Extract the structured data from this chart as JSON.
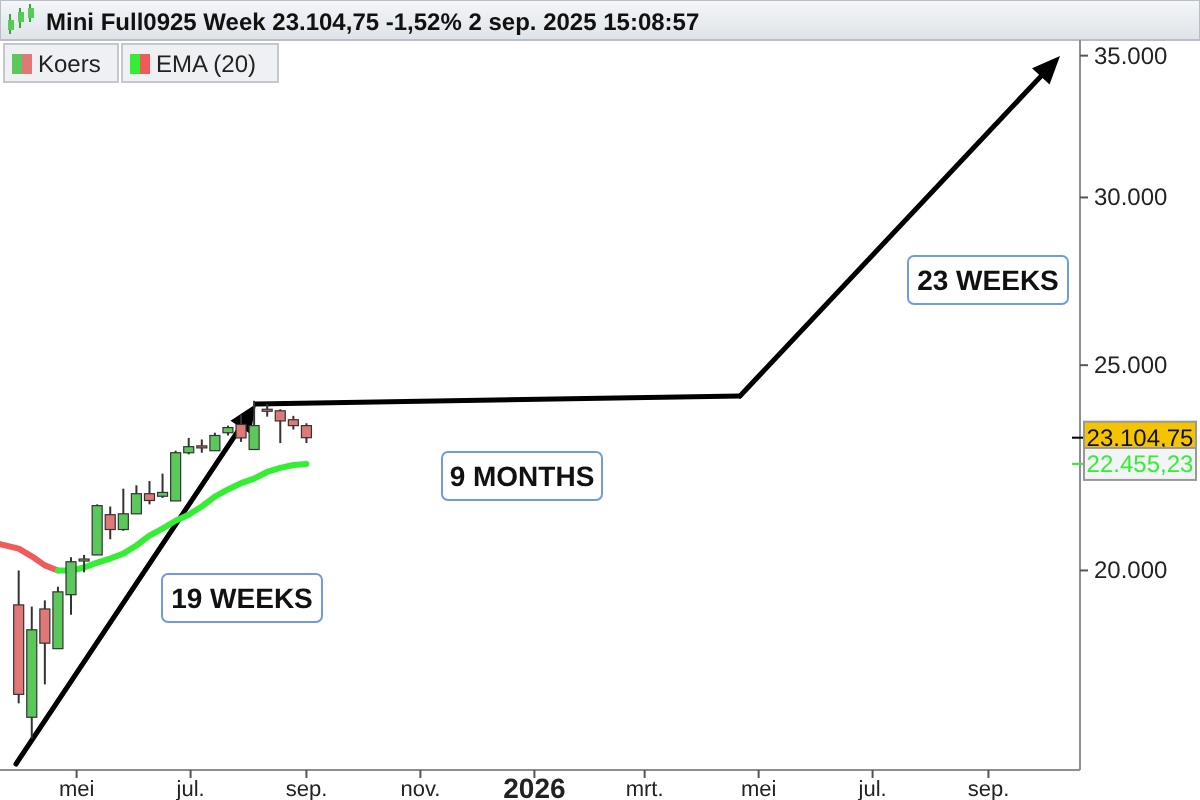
{
  "chart_data": {
    "type": "candlestick",
    "title": "Mini Full0925 Week 23.104,75 -1,52% 2 sep. 2025 15:08:57",
    "log": "y",
    "legend": "top left",
    "xlim": [
      "2025-03-21",
      "2026-10-20"
    ],
    "xticks": [
      {
        "value": "2025-05-01",
        "label": "mei"
      },
      {
        "value": "2025-07-01",
        "label": "jul."
      },
      {
        "value": "2025-09-01",
        "label": "sep."
      },
      {
        "value": "2025-11-01",
        "label": "nov."
      },
      {
        "value": "2026-01-01",
        "label": "2026"
      },
      {
        "value": "2026-03-01",
        "label": "mrt."
      },
      {
        "value": "2026-05-01",
        "label": "mei"
      },
      {
        "value": "2026-07-01",
        "label": "jul."
      },
      {
        "value": "2026-09-01",
        "label": "sep."
      }
    ],
    "ylim": [
      16100,
      35600
    ],
    "yticks": [
      {
        "value": 20000,
        "label": "20.000"
      },
      {
        "value": 25000,
        "label": "25.000"
      },
      {
        "value": 30000,
        "label": "30.000"
      },
      {
        "value": 35000,
        "label": "35.000"
      }
    ],
    "series": [
      {
        "name": "Koers",
        "value_labels": [
          null,
          null,
          null,
          null,
          null,
          null,
          null,
          null,
          null,
          null,
          null,
          null,
          null,
          null,
          null,
          null,
          null,
          null,
          null,
          null,
          null,
          null,
          "23.104,75"
        ],
        "x": [
          "2025-03-31",
          "2025-04-07",
          "2025-04-14",
          "2025-04-21",
          "2025-04-28",
          "2025-05-05",
          "2025-05-12",
          "2025-05-19",
          "2025-05-26",
          "2025-06-02",
          "2025-06-09",
          "2025-06-16",
          "2025-06-23",
          "2025-06-30",
          "2025-07-07",
          "2025-07-14",
          "2025-07-21",
          "2025-07-28",
          "2025-08-04",
          "2025-08-11",
          "2025-08-18",
          "2025-08-25",
          "2025-09-01"
        ],
        "ohlc": [
          [
            19265,
            20000,
            17310,
            17480
          ],
          [
            17050,
            19230,
            16660,
            18750
          ],
          [
            19180,
            19360,
            17670,
            18480
          ],
          [
            18370,
            19650,
            18370,
            19540
          ],
          [
            19480,
            20290,
            19060,
            20190
          ],
          [
            20250,
            20340,
            19960,
            20220
          ],
          [
            20340,
            21490,
            20340,
            21460
          ],
          [
            21250,
            21440,
            20690,
            20910
          ],
          [
            20910,
            21860,
            20880,
            21270
          ],
          [
            21270,
            21940,
            21270,
            21740
          ],
          [
            21740,
            22040,
            21490,
            21580
          ],
          [
            21680,
            22220,
            21640,
            21770
          ],
          [
            21570,
            22780,
            21570,
            22730
          ],
          [
            22730,
            23100,
            22690,
            22880
          ],
          [
            22900,
            23060,
            22730,
            22880
          ],
          [
            22780,
            23230,
            22780,
            23160
          ],
          [
            23230,
            23410,
            23160,
            23360
          ],
          [
            23440,
            23690,
            23000,
            23100
          ],
          [
            22810,
            24050,
            22810,
            23410
          ],
          [
            23830,
            23970,
            23640,
            23790
          ],
          [
            23790,
            23830,
            22970,
            23530
          ],
          [
            23560,
            23660,
            23310,
            23410
          ],
          [
            23410,
            23470,
            22970,
            23105
          ]
        ],
        "colors": [
          "#e07878",
          "#5cc85c",
          "#e07878",
          "#5cc85c",
          "#5cc85c",
          "#5cc85c",
          "#5cc85c",
          "#e07878",
          "#5cc85c",
          "#5cc85c",
          "#e07878",
          "#5cc85c",
          "#5cc85c",
          "#5cc85c",
          "#e07878",
          "#5cc85c",
          "#5cc85c",
          "#e07878",
          "#5cc85c",
          "#e07878",
          "#e07878",
          "#e07878",
          "#e07878"
        ]
      },
      {
        "type": "line",
        "color": "#f05a5a",
        "x": [
          "2025-03-21",
          "2025-03-31",
          "2025-04-07",
          "2025-04-14",
          "2025-04-21"
        ],
        "values": [
          20580,
          20480,
          20310,
          20110,
          20000
        ]
      },
      {
        "type": "line",
        "name": "EMA (20)",
        "color": "#33ee33",
        "x": [
          "2025-04-21",
          "2025-04-28",
          "2025-05-05",
          "2025-05-12",
          "2025-05-19",
          "2025-05-26",
          "2025-06-02",
          "2025-06-09",
          "2025-06-16",
          "2025-06-23",
          "2025-06-30",
          "2025-07-07",
          "2025-07-14",
          "2025-07-21",
          "2025-07-28",
          "2025-08-04",
          "2025-08-11",
          "2025-08-18",
          "2025-08-25",
          "2025-09-01"
        ],
        "values": [
          20000,
          20000,
          20065,
          20170,
          20260,
          20370,
          20550,
          20770,
          20930,
          21110,
          21250,
          21440,
          21670,
          21840,
          21990,
          22100,
          22260,
          22360,
          22430,
          22455.23
        ]
      }
    ],
    "annotations": [
      "19 WEEKS",
      "9 MONTHS",
      "23 WEEKS",
      "22.455,23"
    ]
  }
}
